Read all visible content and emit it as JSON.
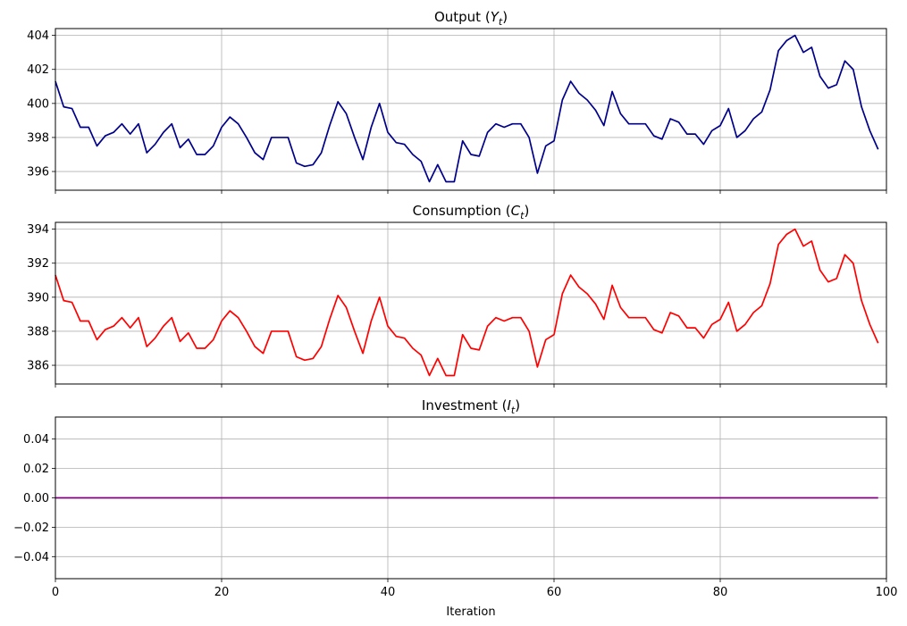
{
  "chart_data": [
    {
      "type": "line",
      "title_prefix": "Output (",
      "title_var": "Y",
      "title_sub": "t",
      "title_suffix": ")",
      "color": "#00008b",
      "xlim": [
        0,
        100
      ],
      "ylim": [
        394.9,
        404.4
      ],
      "yticks": [
        396,
        398,
        400,
        402,
        404
      ],
      "ytick_labels": [
        "396",
        "398",
        "400",
        "402",
        "404"
      ],
      "grid": true,
      "x": [
        0,
        1,
        2,
        3,
        4,
        5,
        6,
        7,
        8,
        9,
        10,
        11,
        12,
        13,
        14,
        15,
        16,
        17,
        18,
        19,
        20,
        21,
        22,
        23,
        24,
        25,
        26,
        27,
        28,
        29,
        30,
        31,
        32,
        33,
        34,
        35,
        36,
        37,
        38,
        39,
        40,
        41,
        42,
        43,
        44,
        45,
        46,
        47,
        48,
        49,
        50,
        51,
        52,
        53,
        54,
        55,
        56,
        57,
        58,
        59,
        60,
        61,
        62,
        63,
        64,
        65,
        66,
        67,
        68,
        69,
        70,
        71,
        72,
        73,
        74,
        75,
        76,
        77,
        78,
        79,
        80,
        81,
        82,
        83,
        84,
        85,
        86,
        87,
        88,
        89,
        90,
        91,
        92,
        93,
        94,
        95,
        96,
        97,
        98,
        99
      ],
      "values": [
        401.3,
        399.8,
        399.7,
        398.6,
        398.6,
        397.5,
        398.1,
        398.3,
        398.8,
        398.2,
        398.8,
        397.1,
        397.6,
        398.3,
        398.8,
        397.4,
        397.9,
        397.0,
        397.0,
        397.5,
        398.6,
        399.2,
        398.8,
        398.0,
        397.1,
        396.7,
        398.0,
        398.0,
        398.0,
        396.5,
        396.3,
        396.4,
        397.1,
        398.7,
        400.1,
        399.4,
        398.0,
        396.7,
        398.6,
        400.0,
        398.3,
        397.7,
        397.6,
        397.0,
        396.6,
        395.4,
        396.4,
        395.4,
        395.4,
        397.8,
        397.0,
        396.9,
        398.3,
        398.8,
        398.6,
        398.8,
        398.8,
        398.0,
        395.9,
        397.5,
        397.8,
        400.2,
        401.3,
        400.6,
        400.2,
        399.6,
        398.7,
        400.7,
        399.4,
        398.8,
        398.8,
        398.8,
        398.1,
        397.9,
        399.1,
        398.9,
        398.2,
        398.2,
        397.6,
        398.4,
        398.7,
        399.7,
        398.0,
        398.4,
        399.1,
        399.5,
        400.8,
        403.1,
        403.7,
        404.0,
        403.0,
        403.3,
        401.6,
        400.9,
        401.1,
        402.5,
        402.0,
        399.8,
        398.4,
        397.3
      ]
    },
    {
      "type": "line",
      "title_prefix": "Consumption (",
      "title_var": "C",
      "title_sub": "t",
      "title_suffix": ")",
      "color": "#ff0000",
      "xlim": [
        0,
        100
      ],
      "ylim": [
        384.9,
        394.4
      ],
      "yticks": [
        386,
        388,
        390,
        392,
        394
      ],
      "ytick_labels": [
        "386",
        "388",
        "390",
        "392",
        "394"
      ],
      "grid": true,
      "x": [
        0,
        1,
        2,
        3,
        4,
        5,
        6,
        7,
        8,
        9,
        10,
        11,
        12,
        13,
        14,
        15,
        16,
        17,
        18,
        19,
        20,
        21,
        22,
        23,
        24,
        25,
        26,
        27,
        28,
        29,
        30,
        31,
        32,
        33,
        34,
        35,
        36,
        37,
        38,
        39,
        40,
        41,
        42,
        43,
        44,
        45,
        46,
        47,
        48,
        49,
        50,
        51,
        52,
        53,
        54,
        55,
        56,
        57,
        58,
        59,
        60,
        61,
        62,
        63,
        64,
        65,
        66,
        67,
        68,
        69,
        70,
        71,
        72,
        73,
        74,
        75,
        76,
        77,
        78,
        79,
        80,
        81,
        82,
        83,
        84,
        85,
        86,
        87,
        88,
        89,
        90,
        91,
        92,
        93,
        94,
        95,
        96,
        97,
        98,
        99
      ],
      "values": [
        391.3,
        389.8,
        389.7,
        388.6,
        388.6,
        387.5,
        388.1,
        388.3,
        388.8,
        388.2,
        388.8,
        387.1,
        387.6,
        388.3,
        388.8,
        387.4,
        387.9,
        387.0,
        387.0,
        387.5,
        388.6,
        389.2,
        388.8,
        388.0,
        387.1,
        386.7,
        388.0,
        388.0,
        388.0,
        386.5,
        386.3,
        386.4,
        387.1,
        388.7,
        390.1,
        389.4,
        388.0,
        386.7,
        388.6,
        390.0,
        388.3,
        387.7,
        387.6,
        387.0,
        386.6,
        385.4,
        386.4,
        385.4,
        385.4,
        387.8,
        387.0,
        386.9,
        388.3,
        388.8,
        388.6,
        388.8,
        388.8,
        388.0,
        385.9,
        387.5,
        387.8,
        390.2,
        391.3,
        390.6,
        390.2,
        389.6,
        388.7,
        390.7,
        389.4,
        388.8,
        388.8,
        388.8,
        388.1,
        387.9,
        389.1,
        388.9,
        388.2,
        388.2,
        387.6,
        388.4,
        388.7,
        389.7,
        388.0,
        388.4,
        389.1,
        389.5,
        390.8,
        393.1,
        393.7,
        394.0,
        393.0,
        393.3,
        391.6,
        390.9,
        391.1,
        392.5,
        392.0,
        389.8,
        388.4,
        387.3
      ]
    },
    {
      "type": "line",
      "title_prefix": "Investment (",
      "title_var": "I",
      "title_sub": "t",
      "title_suffix": ")",
      "color": "#800080",
      "xlim": [
        0,
        100
      ],
      "ylim": [
        -0.055,
        0.055
      ],
      "yticks": [
        -0.04,
        -0.02,
        0.0,
        0.02,
        0.04
      ],
      "ytick_labels": [
        "−0.04",
        "−0.02",
        "0.00",
        "0.02",
        "0.04"
      ],
      "grid": true,
      "x": [
        0,
        99
      ],
      "values": [
        0,
        0
      ]
    }
  ],
  "xticks": [
    0,
    20,
    40,
    60,
    80,
    100
  ],
  "xtick_labels": [
    "0",
    "20",
    "40",
    "60",
    "80",
    "100"
  ],
  "xlabel": "Iteration"
}
